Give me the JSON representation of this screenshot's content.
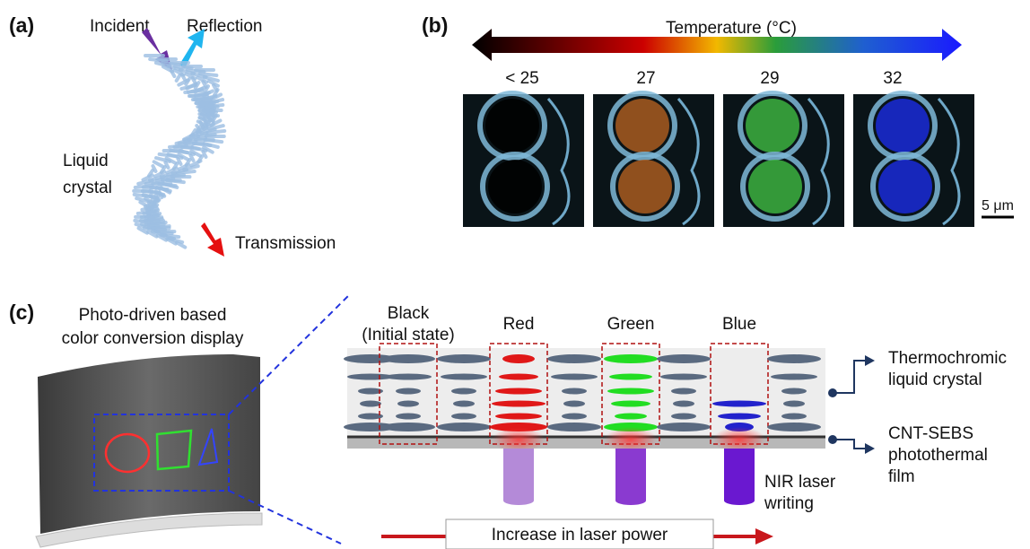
{
  "panel_a": {
    "label": "(a)",
    "incident": "Incident",
    "reflection": "Reflection",
    "material": [
      "Liquid",
      "crystal"
    ],
    "transmission": "Transmission"
  },
  "panel_b": {
    "label": "(b)",
    "scale_title": "Temperature (°C)",
    "temperatures": [
      "< 25",
      "27",
      "29",
      "32"
    ],
    "scale_bar": "5 μm"
  },
  "panel_c": {
    "label": "(c)",
    "title": [
      "Photo-driven based",
      "color conversion display"
    ],
    "states": [
      [
        "Black",
        "(Initial state)"
      ],
      [
        "Red"
      ],
      [
        "Green"
      ],
      [
        "Blue"
      ]
    ],
    "layer_top": [
      "Thermochromic",
      "liquid crystal"
    ],
    "layer_bottom": [
      "CNT-SEBS",
      "photothermal",
      "film"
    ],
    "laser": [
      "NIR laser",
      "writing"
    ],
    "arrow_label": "Increase in laser power"
  }
}
